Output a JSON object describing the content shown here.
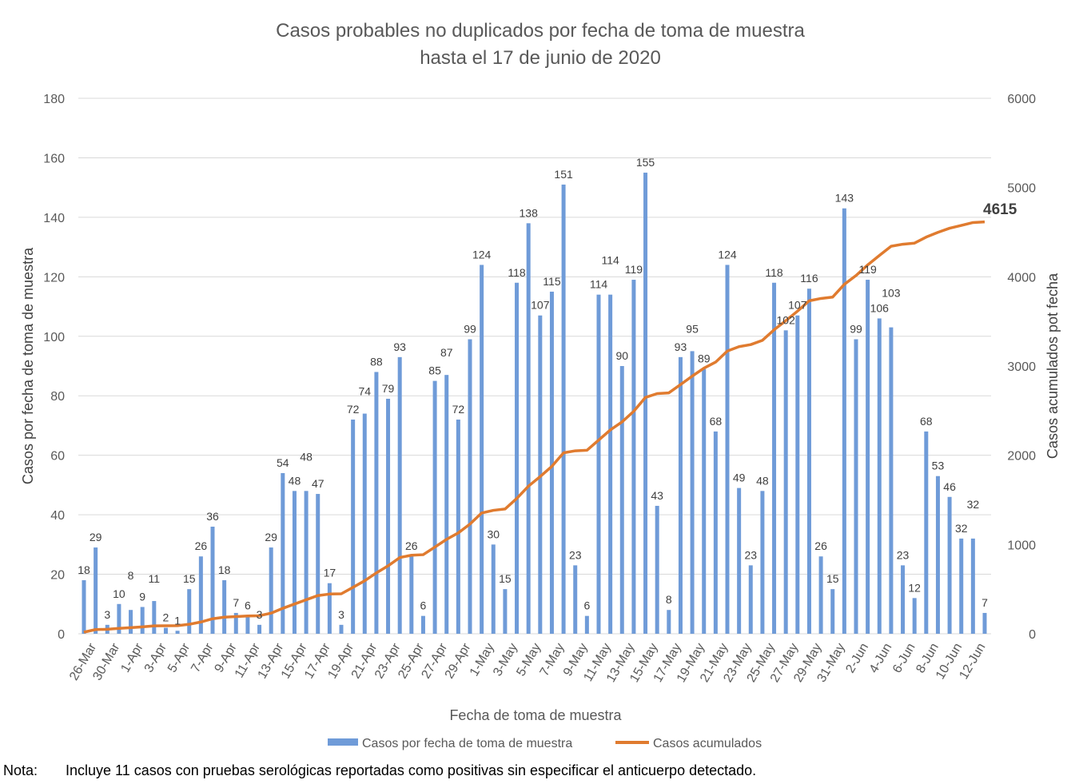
{
  "chart_data": {
    "type": "bar+line",
    "title": "Casos probables no duplicados por fecha de toma de muestra",
    "subtitle": "hasta el 17 de junio de 2020",
    "xlabel": "Fecha de toma de muestra",
    "ylabel": "Casos por fecha de toma de muestra",
    "y2label": "Casos acumulados pot fecha",
    "ylim": [
      0,
      180
    ],
    "y_ticks": [
      0,
      20,
      40,
      60,
      80,
      100,
      120,
      140,
      160,
      180
    ],
    "y2lim": [
      0,
      6000
    ],
    "y2_ticks": [
      0,
      1000,
      2000,
      3000,
      4000,
      5000,
      6000
    ],
    "grid": true,
    "legend_placement": "bottom",
    "x_tick_labels": [
      "26-Mar",
      "30-Mar",
      "1-Apr",
      "3-Apr",
      "5-Apr",
      "7-Apr",
      "9-Apr",
      "11-Apr",
      "13-Apr",
      "15-Apr",
      "17-Apr",
      "19-Apr",
      "21-Apr",
      "23-Apr",
      "25-Apr",
      "27-Apr",
      "29-Apr",
      "1-May",
      "3-May",
      "5-May",
      "7-May",
      "9-May",
      "11-May",
      "13-May",
      "15-May",
      "17-May",
      "19-May",
      "21-May",
      "23-May",
      "25-May",
      "27-May",
      "29-May",
      "31-May",
      "2-Jun",
      "4-Jun",
      "6-Jun",
      "8-Jun",
      "10-Jun",
      "12-Jun"
    ],
    "series": [
      {
        "name": "Casos por fecha de toma de muestra",
        "type": "bar",
        "axis": "left",
        "color": "#6f9bd8",
        "values": [
          18,
          29,
          3,
          10,
          8,
          9,
          11,
          2,
          1,
          15,
          26,
          36,
          18,
          7,
          6,
          3,
          29,
          54,
          48,
          48,
          47,
          17,
          3,
          72,
          74,
          88,
          79,
          93,
          26,
          6,
          85,
          87,
          72,
          99,
          124,
          30,
          15,
          118,
          138,
          107,
          115,
          151,
          23,
          6,
          114,
          114,
          90,
          119,
          155,
          43,
          8,
          93,
          95,
          89,
          68,
          124,
          49,
          23,
          48,
          118,
          102,
          107,
          116,
          26,
          15,
          143,
          99,
          119,
          106,
          103,
          23,
          12,
          68,
          53,
          46,
          32,
          32,
          7
        ]
      },
      {
        "name": "Casos acumulados",
        "type": "line",
        "axis": "right",
        "color": "#e07b2f",
        "values": [
          18,
          47,
          50,
          60,
          68,
          77,
          88,
          90,
          91,
          106,
          132,
          168,
          186,
          193,
          199,
          202,
          231,
          285,
          333,
          381,
          428,
          445,
          448,
          520,
          594,
          682,
          761,
          854,
          880,
          886,
          971,
          1058,
          1130,
          1229,
          1353,
          1383,
          1398,
          1516,
          1654,
          1761,
          1876,
          2027,
          2050,
          2056,
          2170,
          2284,
          2374,
          2493,
          2648,
          2691,
          2699,
          2792,
          2887,
          2976,
          3044,
          3168,
          3217,
          3240,
          3288,
          3406,
          3508,
          3615,
          3731,
          3757,
          3772,
          3915,
          4014,
          4133,
          4239,
          4342,
          4365,
          4377,
          4445,
          4498,
          4544,
          4576,
          4608,
          4615
        ],
        "end_label": "4615"
      }
    ]
  },
  "note": {
    "label": "Nota:",
    "text": "Incluye 11 casos con pruebas serológicas reportadas como positivas sin especificar el anticuerpo detectado."
  }
}
